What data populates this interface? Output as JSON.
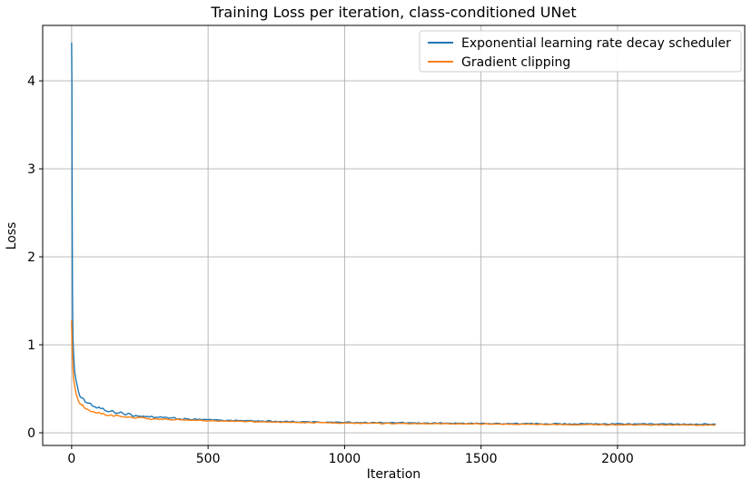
{
  "chart_data": {
    "type": "line",
    "title": "Training Loss per iteration, class-conditioned UNet",
    "xlabel": "Iteration",
    "ylabel": "Loss",
    "xlim": [
      -106,
      2466
    ],
    "ylim": [
      -0.144,
      4.63
    ],
    "xticks": [
      0,
      500,
      1000,
      1500,
      2000
    ],
    "yticks": [
      0,
      1,
      2,
      3,
      4
    ],
    "grid": true,
    "grid_color": "#b0b0b0",
    "spine_color": "#000000",
    "legend_position": "upper right",
    "legend_border_color": "#cccccc",
    "series": [
      {
        "name": "Exponential learning rate decay scheduler",
        "color": "#1f77b4",
        "noise_base": 0.007,
        "noise_extra": 0.022,
        "points": [
          [
            0,
            4.43
          ],
          [
            1,
            4.0
          ],
          [
            2,
            2.6
          ],
          [
            3,
            1.66
          ],
          [
            4,
            1.3
          ],
          [
            5,
            1.05
          ],
          [
            7,
            0.92
          ],
          [
            9,
            0.8
          ],
          [
            12,
            0.68
          ],
          [
            15,
            0.6
          ],
          [
            20,
            0.52
          ],
          [
            25,
            0.47
          ],
          [
            30,
            0.44
          ],
          [
            40,
            0.395
          ],
          [
            50,
            0.36
          ],
          [
            60,
            0.34
          ],
          [
            70,
            0.32
          ],
          [
            85,
            0.3
          ],
          [
            100,
            0.275
          ],
          [
            120,
            0.255
          ],
          [
            140,
            0.24
          ],
          [
            160,
            0.23
          ],
          [
            180,
            0.225
          ],
          [
            200,
            0.21
          ],
          [
            225,
            0.2
          ],
          [
            250,
            0.19
          ],
          [
            300,
            0.18
          ],
          [
            350,
            0.168
          ],
          [
            400,
            0.158
          ],
          [
            450,
            0.152
          ],
          [
            500,
            0.147
          ],
          [
            550,
            0.143
          ],
          [
            600,
            0.14
          ],
          [
            700,
            0.133
          ],
          [
            800,
            0.127
          ],
          [
            900,
            0.122
          ],
          [
            1000,
            0.118
          ],
          [
            1100,
            0.115
          ],
          [
            1200,
            0.112
          ],
          [
            1300,
            0.11
          ],
          [
            1400,
            0.108
          ],
          [
            1500,
            0.106
          ],
          [
            1600,
            0.104
          ],
          [
            1700,
            0.103
          ],
          [
            1800,
            0.102
          ],
          [
            1900,
            0.101
          ],
          [
            2000,
            0.1
          ],
          [
            2100,
            0.1
          ],
          [
            2200,
            0.099
          ],
          [
            2357,
            0.098
          ]
        ]
      },
      {
        "name": "Gradient clipping",
        "color": "#ff7f0e",
        "noise_base": 0.005,
        "noise_extra": 0.016,
        "points": [
          [
            0,
            1.27
          ],
          [
            1,
            1.1
          ],
          [
            2,
            0.95
          ],
          [
            3,
            0.85
          ],
          [
            5,
            0.72
          ],
          [
            7,
            0.62
          ],
          [
            10,
            0.54
          ],
          [
            13,
            0.48
          ],
          [
            17,
            0.43
          ],
          [
            22,
            0.385
          ],
          [
            28,
            0.35
          ],
          [
            35,
            0.32
          ],
          [
            45,
            0.29
          ],
          [
            55,
            0.27
          ],
          [
            70,
            0.25
          ],
          [
            85,
            0.235
          ],
          [
            100,
            0.222
          ],
          [
            120,
            0.21
          ],
          [
            140,
            0.2
          ],
          [
            170,
            0.19
          ],
          [
            200,
            0.18
          ],
          [
            250,
            0.168
          ],
          [
            300,
            0.158
          ],
          [
            350,
            0.152
          ],
          [
            400,
            0.146
          ],
          [
            450,
            0.141
          ],
          [
            500,
            0.137
          ],
          [
            600,
            0.13
          ],
          [
            700,
            0.124
          ],
          [
            800,
            0.119
          ],
          [
            900,
            0.115
          ],
          [
            1000,
            0.111
          ],
          [
            1100,
            0.108
          ],
          [
            1200,
            0.105
          ],
          [
            1300,
            0.103
          ],
          [
            1400,
            0.101
          ],
          [
            1500,
            0.099
          ],
          [
            1600,
            0.097
          ],
          [
            1700,
            0.095
          ],
          [
            1800,
            0.094
          ],
          [
            1900,
            0.092
          ],
          [
            2000,
            0.091
          ],
          [
            2100,
            0.09
          ],
          [
            2200,
            0.089
          ],
          [
            2357,
            0.088
          ]
        ]
      }
    ]
  }
}
